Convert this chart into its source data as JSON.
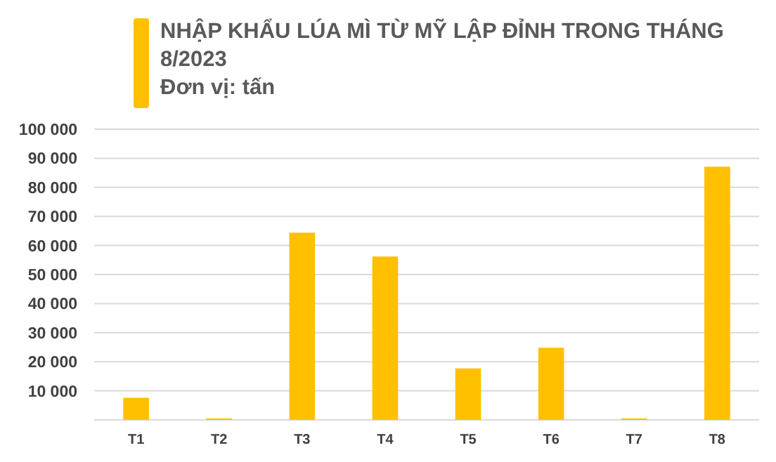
{
  "chart_data": {
    "type": "bar",
    "title": "NHẬP KHẨU LÚA MÌ TỪ MỸ LẬP ĐỈNH TRONG THÁNG 8/2023",
    "subtitle": "Đơn vị: tấn",
    "categories": [
      "T1",
      "T2",
      "T3",
      "T4",
      "T5",
      "T6",
      "T7",
      "T8"
    ],
    "values": [
      7600,
      500,
      64400,
      56200,
      17700,
      24800,
      500,
      87100
    ],
    "color": "#ffc000",
    "ylim": [
      0,
      100000
    ],
    "yticks": [
      {
        "value": 0,
        "label": null
      },
      {
        "value": 10000,
        "label": "10 000"
      },
      {
        "value": 20000,
        "label": "20 000"
      },
      {
        "value": 30000,
        "label": "30 000"
      },
      {
        "value": 40000,
        "label": "40 000"
      },
      {
        "value": 50000,
        "label": "50 000"
      },
      {
        "value": 60000,
        "label": "60 000"
      },
      {
        "value": 70000,
        "label": "70 000"
      },
      {
        "value": 80000,
        "label": "80 000"
      },
      {
        "value": 90000,
        "label": "90 000"
      },
      {
        "value": 100000,
        "label": "100 000"
      }
    ],
    "grid": "y"
  }
}
